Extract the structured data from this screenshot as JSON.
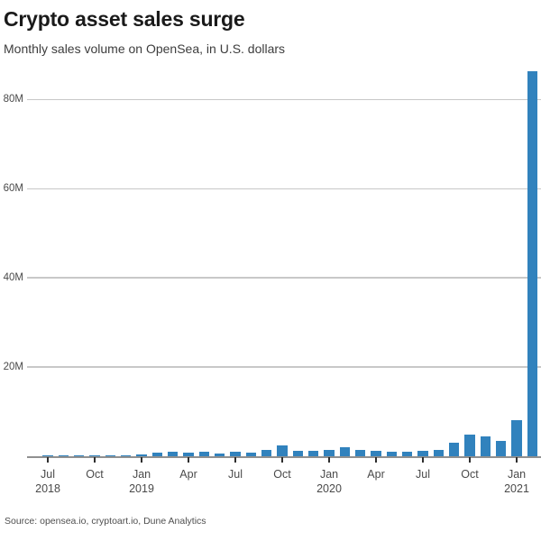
{
  "header": {
    "title": "Crypto asset sales surge",
    "subtitle": "Monthly sales volume on OpenSea, in U.S. dollars"
  },
  "footer": {
    "source": "Source: opensea.io, cryptoart.io, Dune Analytics"
  },
  "colors": {
    "bar": "#3182bd",
    "gridline": "#c8c8c8",
    "axis_line": "#909090",
    "tick_mark": "#2e2e2e",
    "axis_label": "#4a4a4a",
    "title": "#1a1a1a",
    "subtitle": "#3d3d3d",
    "source": "#4f4f4f",
    "background": "#ffffff"
  },
  "chart_data": {
    "type": "bar",
    "title": "Crypto asset sales surge",
    "subtitle": "Monthly sales volume on OpenSea, in U.S. dollars",
    "unit": "millions of U.S. dollars",
    "categories": [
      "Jun 2018",
      "Jul 2018",
      "Aug 2018",
      "Sep 2018",
      "Oct 2018",
      "Nov 2018",
      "Dec 2018",
      "Jan 2019",
      "Feb 2019",
      "Mar 2019",
      "Apr 2019",
      "May 2019",
      "Jun 2019",
      "Jul 2019",
      "Aug 2019",
      "Sep 2019",
      "Oct 2019",
      "Nov 2019",
      "Dec 2019",
      "Jan 2020",
      "Feb 2020",
      "Mar 2020",
      "Apr 2020",
      "May 2020",
      "Jun 2020",
      "Jul 2020",
      "Aug 2020",
      "Sep 2020",
      "Oct 2020",
      "Nov 2020",
      "Dec 2020",
      "Jan 2021",
      "Feb 2021"
    ],
    "values": [
      0.1,
      0.12,
      0.3,
      0.12,
      0.12,
      0.12,
      0.28,
      0.4,
      0.75,
      1.0,
      0.85,
      1.0,
      0.7,
      1.0,
      0.8,
      1.4,
      2.4,
      1.2,
      1.2,
      1.5,
      2.0,
      1.4,
      1.2,
      1.1,
      1.0,
      1.2,
      1.4,
      3.0,
      4.8,
      4.4,
      3.4,
      8.0,
      86.3
    ],
    "ylim": [
      0,
      87
    ],
    "yticks": [
      {
        "value": 20,
        "label": "20M"
      },
      {
        "value": 40,
        "label": "40M"
      },
      {
        "value": 60,
        "label": "60M"
      },
      {
        "value": 80,
        "label": "80M"
      }
    ],
    "xticks": [
      {
        "month_index": 1,
        "label": "Jul",
        "sublabel": "2018"
      },
      {
        "month_index": 4,
        "label": "Oct",
        "sublabel": ""
      },
      {
        "month_index": 7,
        "label": "Jan",
        "sublabel": "2019"
      },
      {
        "month_index": 10,
        "label": "Apr",
        "sublabel": ""
      },
      {
        "month_index": 13,
        "label": "Jul",
        "sublabel": ""
      },
      {
        "month_index": 16,
        "label": "Oct",
        "sublabel": ""
      },
      {
        "month_index": 19,
        "label": "Jan",
        "sublabel": "2020"
      },
      {
        "month_index": 22,
        "label": "Apr",
        "sublabel": ""
      },
      {
        "month_index": 25,
        "label": "Jul",
        "sublabel": ""
      },
      {
        "month_index": 28,
        "label": "Oct",
        "sublabel": ""
      },
      {
        "month_index": 31,
        "label": "Jan",
        "sublabel": "2021"
      }
    ],
    "grid": "horizontal",
    "legend": "none"
  }
}
